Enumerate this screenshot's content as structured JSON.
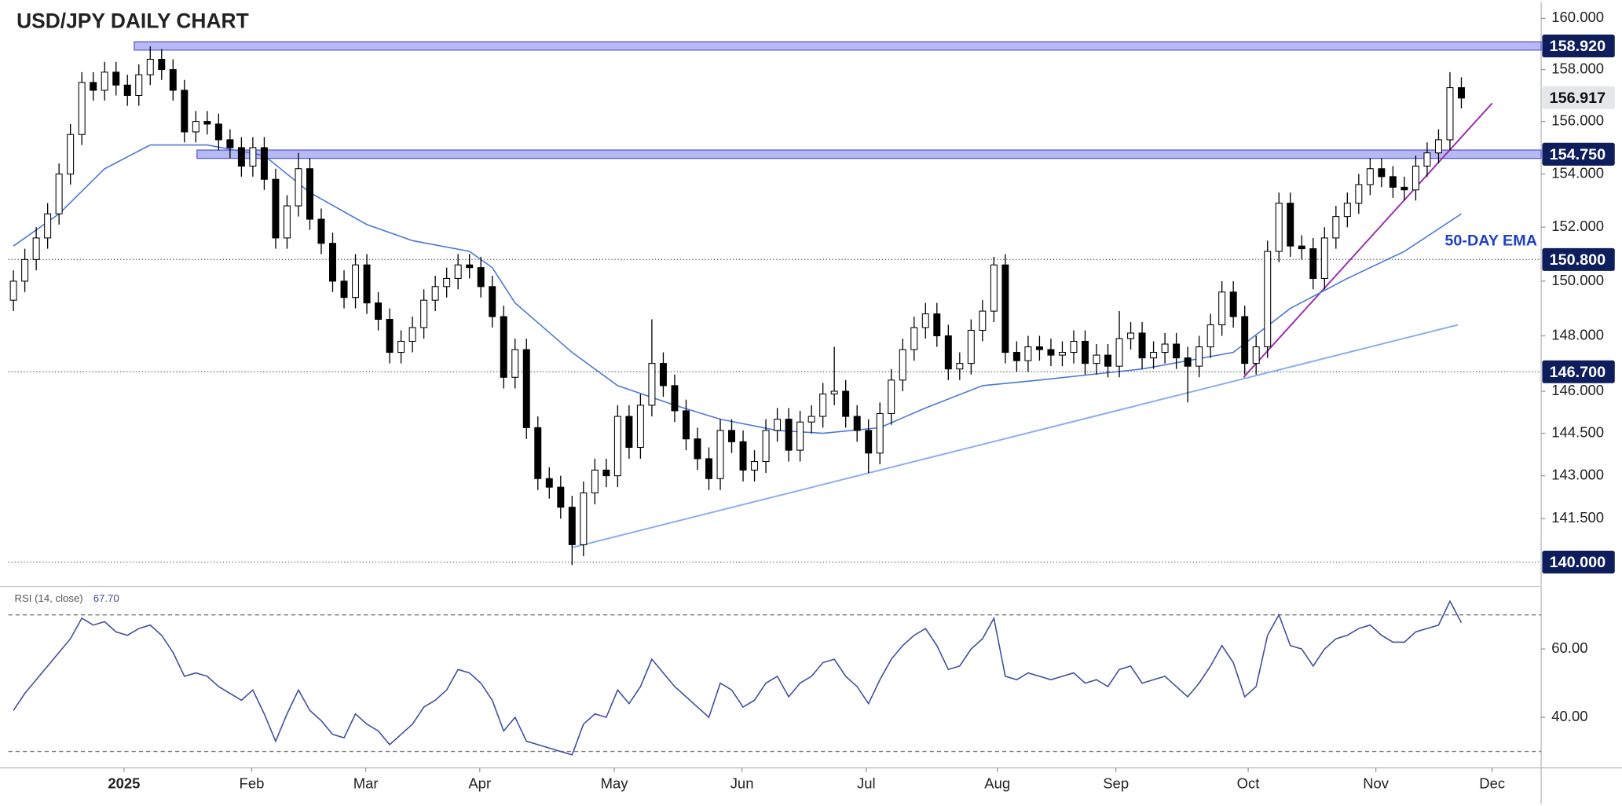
{
  "chart_data": [
    {
      "type": "candlestick",
      "title": "USD/JPY DAILY CHART",
      "log_scale": true,
      "xlim": [
        -0.45,
        134
      ],
      "ylim": [
        139.2,
        160.65
      ],
      "up_color": "#ffffff",
      "down_color": "#000000",
      "yticks": [
        {
          "value": 160,
          "label": "160.000"
        },
        {
          "value": 158,
          "label": "158.000"
        },
        {
          "value": 156,
          "label": "156.000"
        },
        {
          "value": 154,
          "label": "154.000"
        },
        {
          "value": 152,
          "label": "152.000"
        },
        {
          "value": 150,
          "label": "150.000"
        },
        {
          "value": 148,
          "label": "148.000"
        },
        {
          "value": 146,
          "label": "146.000"
        },
        {
          "value": 144.5,
          "label": "144.500"
        },
        {
          "value": 143,
          "label": "143.000"
        },
        {
          "value": 141.5,
          "label": "141.500"
        }
      ],
      "ohlc": [
        [
          149.3,
          150.4,
          148.9,
          150.0
        ],
        [
          150.0,
          151.2,
          149.6,
          150.8
        ],
        [
          150.8,
          152.0,
          150.4,
          151.6
        ],
        [
          151.6,
          152.9,
          151.2,
          152.5
        ],
        [
          152.5,
          154.4,
          152.1,
          154.0
        ],
        [
          154.0,
          155.9,
          153.6,
          155.5
        ],
        [
          155.5,
          157.9,
          155.1,
          157.5
        ],
        [
          157.5,
          157.9,
          156.8,
          157.2
        ],
        [
          157.2,
          158.3,
          156.8,
          157.9
        ],
        [
          157.9,
          158.3,
          157.0,
          157.4
        ],
        [
          157.4,
          157.8,
          156.6,
          157.0
        ],
        [
          157.0,
          158.2,
          156.6,
          157.8
        ],
        [
          157.8,
          158.9,
          157.4,
          158.4
        ],
        [
          158.4,
          158.8,
          157.6,
          158.0
        ],
        [
          158.0,
          158.4,
          156.8,
          157.2
        ],
        [
          157.2,
          157.6,
          155.2,
          155.6
        ],
        [
          155.6,
          156.4,
          155.2,
          156.0
        ],
        [
          156.0,
          156.4,
          155.5,
          155.9
        ],
        [
          155.9,
          156.3,
          154.9,
          155.3
        ],
        [
          155.3,
          155.7,
          154.6,
          155.0
        ],
        [
          155.0,
          155.4,
          153.9,
          154.3
        ],
        [
          154.3,
          155.4,
          153.9,
          155.0
        ],
        [
          155.0,
          155.4,
          153.4,
          153.8
        ],
        [
          153.8,
          154.2,
          151.2,
          151.6
        ],
        [
          151.6,
          153.2,
          151.2,
          152.8
        ],
        [
          152.8,
          154.8,
          152.4,
          154.2
        ],
        [
          154.2,
          154.6,
          151.9,
          152.3
        ],
        [
          152.3,
          152.7,
          151.0,
          151.4
        ],
        [
          151.4,
          151.8,
          149.6,
          150.0
        ],
        [
          150.0,
          150.4,
          149.0,
          149.4
        ],
        [
          149.4,
          151.0,
          149.0,
          150.6
        ],
        [
          150.6,
          151.0,
          148.8,
          149.2
        ],
        [
          149.2,
          149.6,
          148.2,
          148.6
        ],
        [
          148.6,
          149.0,
          147.0,
          147.4
        ],
        [
          147.4,
          148.2,
          147.0,
          147.8
        ],
        [
          147.8,
          148.7,
          147.4,
          148.3
        ],
        [
          148.3,
          149.7,
          147.9,
          149.3
        ],
        [
          149.3,
          150.2,
          148.9,
          149.8
        ],
        [
          149.8,
          150.5,
          149.4,
          150.1
        ],
        [
          150.1,
          151.0,
          149.7,
          150.6
        ],
        [
          150.6,
          151.0,
          150.1,
          150.5
        ],
        [
          150.5,
          150.9,
          149.4,
          149.8
        ],
        [
          149.8,
          150.2,
          148.3,
          148.7
        ],
        [
          148.7,
          149.1,
          146.1,
          146.5
        ],
        [
          146.5,
          147.9,
          146.1,
          147.5
        ],
        [
          147.5,
          147.9,
          144.3,
          144.7
        ],
        [
          144.7,
          145.1,
          142.5,
          142.9
        ],
        [
          142.9,
          143.3,
          142.2,
          142.6
        ],
        [
          142.6,
          143.0,
          141.5,
          141.9
        ],
        [
          141.9,
          142.3,
          139.9,
          140.6
        ],
        [
          140.6,
          142.8,
          140.2,
          142.4
        ],
        [
          142.4,
          143.6,
          142.0,
          143.2
        ],
        [
          143.2,
          143.6,
          142.6,
          143.0
        ],
        [
          143.0,
          145.5,
          142.6,
          145.1
        ],
        [
          145.1,
          145.5,
          143.6,
          144.0
        ],
        [
          144.0,
          145.9,
          143.6,
          145.5
        ],
        [
          145.5,
          148.6,
          145.1,
          147.0
        ],
        [
          147.0,
          147.4,
          145.8,
          146.2
        ],
        [
          146.2,
          146.6,
          144.9,
          145.3
        ],
        [
          145.3,
          145.7,
          143.9,
          144.3
        ],
        [
          144.3,
          144.7,
          143.2,
          143.6
        ],
        [
          143.6,
          144.0,
          142.5,
          142.9
        ],
        [
          142.9,
          145.0,
          142.5,
          144.6
        ],
        [
          144.6,
          145.0,
          143.8,
          144.2
        ],
        [
          144.2,
          144.6,
          142.8,
          143.2
        ],
        [
          143.2,
          143.9,
          142.8,
          143.5
        ],
        [
          143.5,
          145.0,
          143.1,
          144.6
        ],
        [
          144.6,
          145.4,
          144.2,
          145.0
        ],
        [
          145.0,
          145.4,
          143.5,
          143.9
        ],
        [
          143.9,
          145.3,
          143.5,
          144.9
        ],
        [
          144.9,
          145.5,
          144.5,
          145.1
        ],
        [
          145.1,
          146.3,
          144.7,
          145.9
        ],
        [
          145.9,
          147.6,
          145.5,
          146.0
        ],
        [
          146.0,
          146.4,
          144.7,
          145.1
        ],
        [
          145.1,
          145.5,
          144.2,
          144.6
        ],
        [
          144.6,
          145.0,
          143.1,
          143.8
        ],
        [
          143.8,
          145.6,
          143.4,
          145.2
        ],
        [
          145.2,
          146.8,
          144.8,
          146.4
        ],
        [
          146.4,
          147.9,
          146.0,
          147.5
        ],
        [
          147.5,
          148.7,
          147.1,
          148.3
        ],
        [
          148.3,
          149.2,
          147.9,
          148.8
        ],
        [
          148.8,
          149.2,
          147.6,
          148.0
        ],
        [
          148.0,
          148.4,
          146.4,
          146.8
        ],
        [
          146.8,
          147.4,
          146.4,
          147.0
        ],
        [
          147.0,
          148.6,
          146.6,
          148.2
        ],
        [
          148.2,
          149.3,
          147.8,
          148.9
        ],
        [
          148.9,
          150.9,
          148.5,
          150.6
        ],
        [
          150.6,
          151.0,
          147.0,
          147.4
        ],
        [
          147.4,
          147.8,
          146.7,
          147.1
        ],
        [
          147.1,
          148.0,
          146.7,
          147.6
        ],
        [
          147.6,
          148.0,
          147.1,
          147.5
        ],
        [
          147.5,
          147.9,
          146.9,
          147.3
        ],
        [
          147.3,
          147.8,
          146.9,
          147.4
        ],
        [
          147.4,
          148.2,
          147.0,
          147.8
        ],
        [
          147.8,
          148.2,
          146.6,
          147.0
        ],
        [
          147.0,
          147.7,
          146.6,
          147.3
        ],
        [
          147.3,
          147.7,
          146.5,
          146.9
        ],
        [
          146.9,
          148.9,
          146.5,
          147.9
        ],
        [
          147.9,
          148.5,
          147.5,
          148.1
        ],
        [
          148.1,
          148.5,
          146.8,
          147.2
        ],
        [
          147.2,
          147.8,
          146.8,
          147.4
        ],
        [
          147.4,
          148.1,
          147.0,
          147.7
        ],
        [
          147.7,
          148.1,
          146.8,
          147.2
        ],
        [
          147.2,
          147.6,
          145.6,
          146.9
        ],
        [
          146.9,
          148.0,
          146.5,
          147.6
        ],
        [
          147.6,
          148.8,
          147.2,
          148.4
        ],
        [
          148.4,
          150.0,
          148.0,
          149.6
        ],
        [
          149.6,
          150.0,
          148.3,
          148.7
        ],
        [
          148.7,
          149.1,
          146.6,
          147.0
        ],
        [
          147.0,
          148.0,
          146.6,
          147.6
        ],
        [
          147.6,
          151.5,
          147.2,
          151.1
        ],
        [
          151.1,
          153.3,
          150.7,
          152.9
        ],
        [
          152.9,
          153.3,
          150.9,
          151.3
        ],
        [
          151.3,
          151.7,
          150.8,
          151.2
        ],
        [
          151.2,
          151.6,
          149.7,
          150.1
        ],
        [
          150.1,
          152.0,
          149.7,
          151.6
        ],
        [
          151.6,
          152.8,
          151.2,
          152.4
        ],
        [
          152.4,
          153.3,
          152.0,
          152.9
        ],
        [
          152.9,
          154.0,
          152.5,
          153.6
        ],
        [
          153.6,
          154.6,
          153.2,
          154.2
        ],
        [
          154.2,
          154.6,
          153.5,
          153.9
        ],
        [
          153.9,
          154.3,
          153.1,
          153.5
        ],
        [
          153.5,
          153.9,
          153.0,
          153.4
        ],
        [
          153.4,
          154.7,
          153.0,
          154.3
        ],
        [
          154.3,
          155.2,
          153.9,
          154.8
        ],
        [
          154.8,
          155.7,
          154.4,
          155.3
        ],
        [
          155.3,
          157.9,
          154.9,
          157.3
        ],
        [
          157.3,
          157.7,
          156.5,
          156.9
        ]
      ],
      "ema": {
        "name": "50-DAY EMA",
        "color": "#4a78d6",
        "x": [
          0,
          4,
          8,
          12,
          17,
          22,
          26,
          31,
          35,
          40,
          42,
          44,
          49,
          53,
          58,
          62,
          67,
          71,
          76,
          80,
          85,
          90,
          99,
          107,
          112,
          117,
          122,
          127
        ],
        "values": [
          151.3,
          152.5,
          154.2,
          155.1,
          155.1,
          154.7,
          153.3,
          152.1,
          151.5,
          151.1,
          150.5,
          149.2,
          147.4,
          146.2,
          145.5,
          145.0,
          144.6,
          144.5,
          144.7,
          145.4,
          146.2,
          146.4,
          146.8,
          147.4,
          149.0,
          150.1,
          151.1,
          152.5
        ]
      },
      "trendlines": [
        {
          "color": "#8ab0e8",
          "points": [
            [
              49,
              140.5
            ],
            [
              126.7,
              148.4
            ]
          ]
        },
        {
          "color": "#9b2fae",
          "points": [
            [
              107.9,
              146.5
            ],
            [
              129.7,
              156.7
            ]
          ]
        }
      ],
      "levels": [
        {
          "value": 158.92,
          "label": "158.920",
          "style": "band",
          "start": 10.6
        },
        {
          "value": 154.75,
          "label": "154.750",
          "style": "band",
          "start": 16.1
        },
        {
          "value": 150.8,
          "label": "150.800",
          "style": "dotted"
        },
        {
          "value": 146.7,
          "label": "146.700",
          "style": "dotted"
        },
        {
          "value": 140,
          "label": "140.000",
          "style": "dotted"
        },
        {
          "value": 156.917,
          "label": "156.917",
          "style": "last"
        }
      ]
    },
    {
      "type": "line",
      "title": "RSI (14, close)",
      "current_label": "67.70",
      "color": "#3d4f9e",
      "xlim": [
        -0.45,
        134
      ],
      "ylim": [
        25.5,
        78
      ],
      "bands": [
        30,
        70
      ],
      "yticks": [
        {
          "value": 40,
          "label": "40.00"
        },
        {
          "value": 60,
          "label": "60.00"
        }
      ],
      "xticks": [
        {
          "value": 9.7,
          "label": "2025"
        },
        {
          "value": 20.9,
          "label": "Feb"
        },
        {
          "value": 30.9,
          "label": "Mar"
        },
        {
          "value": 40.9,
          "label": "Apr"
        },
        {
          "value": 52.7,
          "label": "May"
        },
        {
          "value": 63.9,
          "label": "Jun"
        },
        {
          "value": 74.8,
          "label": "Jul"
        },
        {
          "value": 86.3,
          "label": "Aug"
        },
        {
          "value": 96.7,
          "label": "Sep"
        },
        {
          "value": 108.3,
          "label": "Oct"
        },
        {
          "value": 119.5,
          "label": "Nov"
        },
        {
          "value": 129.7,
          "label": "Dec"
        }
      ],
      "values": [
        42,
        47,
        51,
        55,
        59,
        63,
        69,
        67,
        68,
        65,
        64,
        66,
        67,
        64,
        59,
        52,
        53,
        52,
        49,
        47,
        45,
        48,
        41,
        33,
        41,
        48,
        42,
        39,
        35,
        34,
        41,
        38,
        36,
        32,
        35,
        38,
        43,
        45,
        48,
        54,
        53,
        50,
        45,
        36,
        40,
        33,
        32,
        31,
        30,
        29,
        38,
        41,
        40,
        48,
        44,
        49,
        57,
        53,
        49,
        46,
        43,
        40,
        50,
        48,
        43,
        45,
        50,
        52,
        46,
        50,
        52,
        56,
        57,
        52,
        49,
        44,
        51,
        57,
        61,
        64,
        66,
        61,
        54,
        55,
        60,
        63,
        69,
        52,
        51,
        53,
        52,
        51,
        52,
        53,
        50,
        51,
        49,
        54,
        55,
        50,
        51,
        52,
        49,
        46,
        50,
        55,
        61,
        56,
        46,
        49,
        64,
        70,
        61,
        60,
        55,
        60,
        63,
        64,
        66,
        67,
        64,
        62,
        62,
        65,
        66,
        67,
        74,
        67.7
      ]
    }
  ]
}
